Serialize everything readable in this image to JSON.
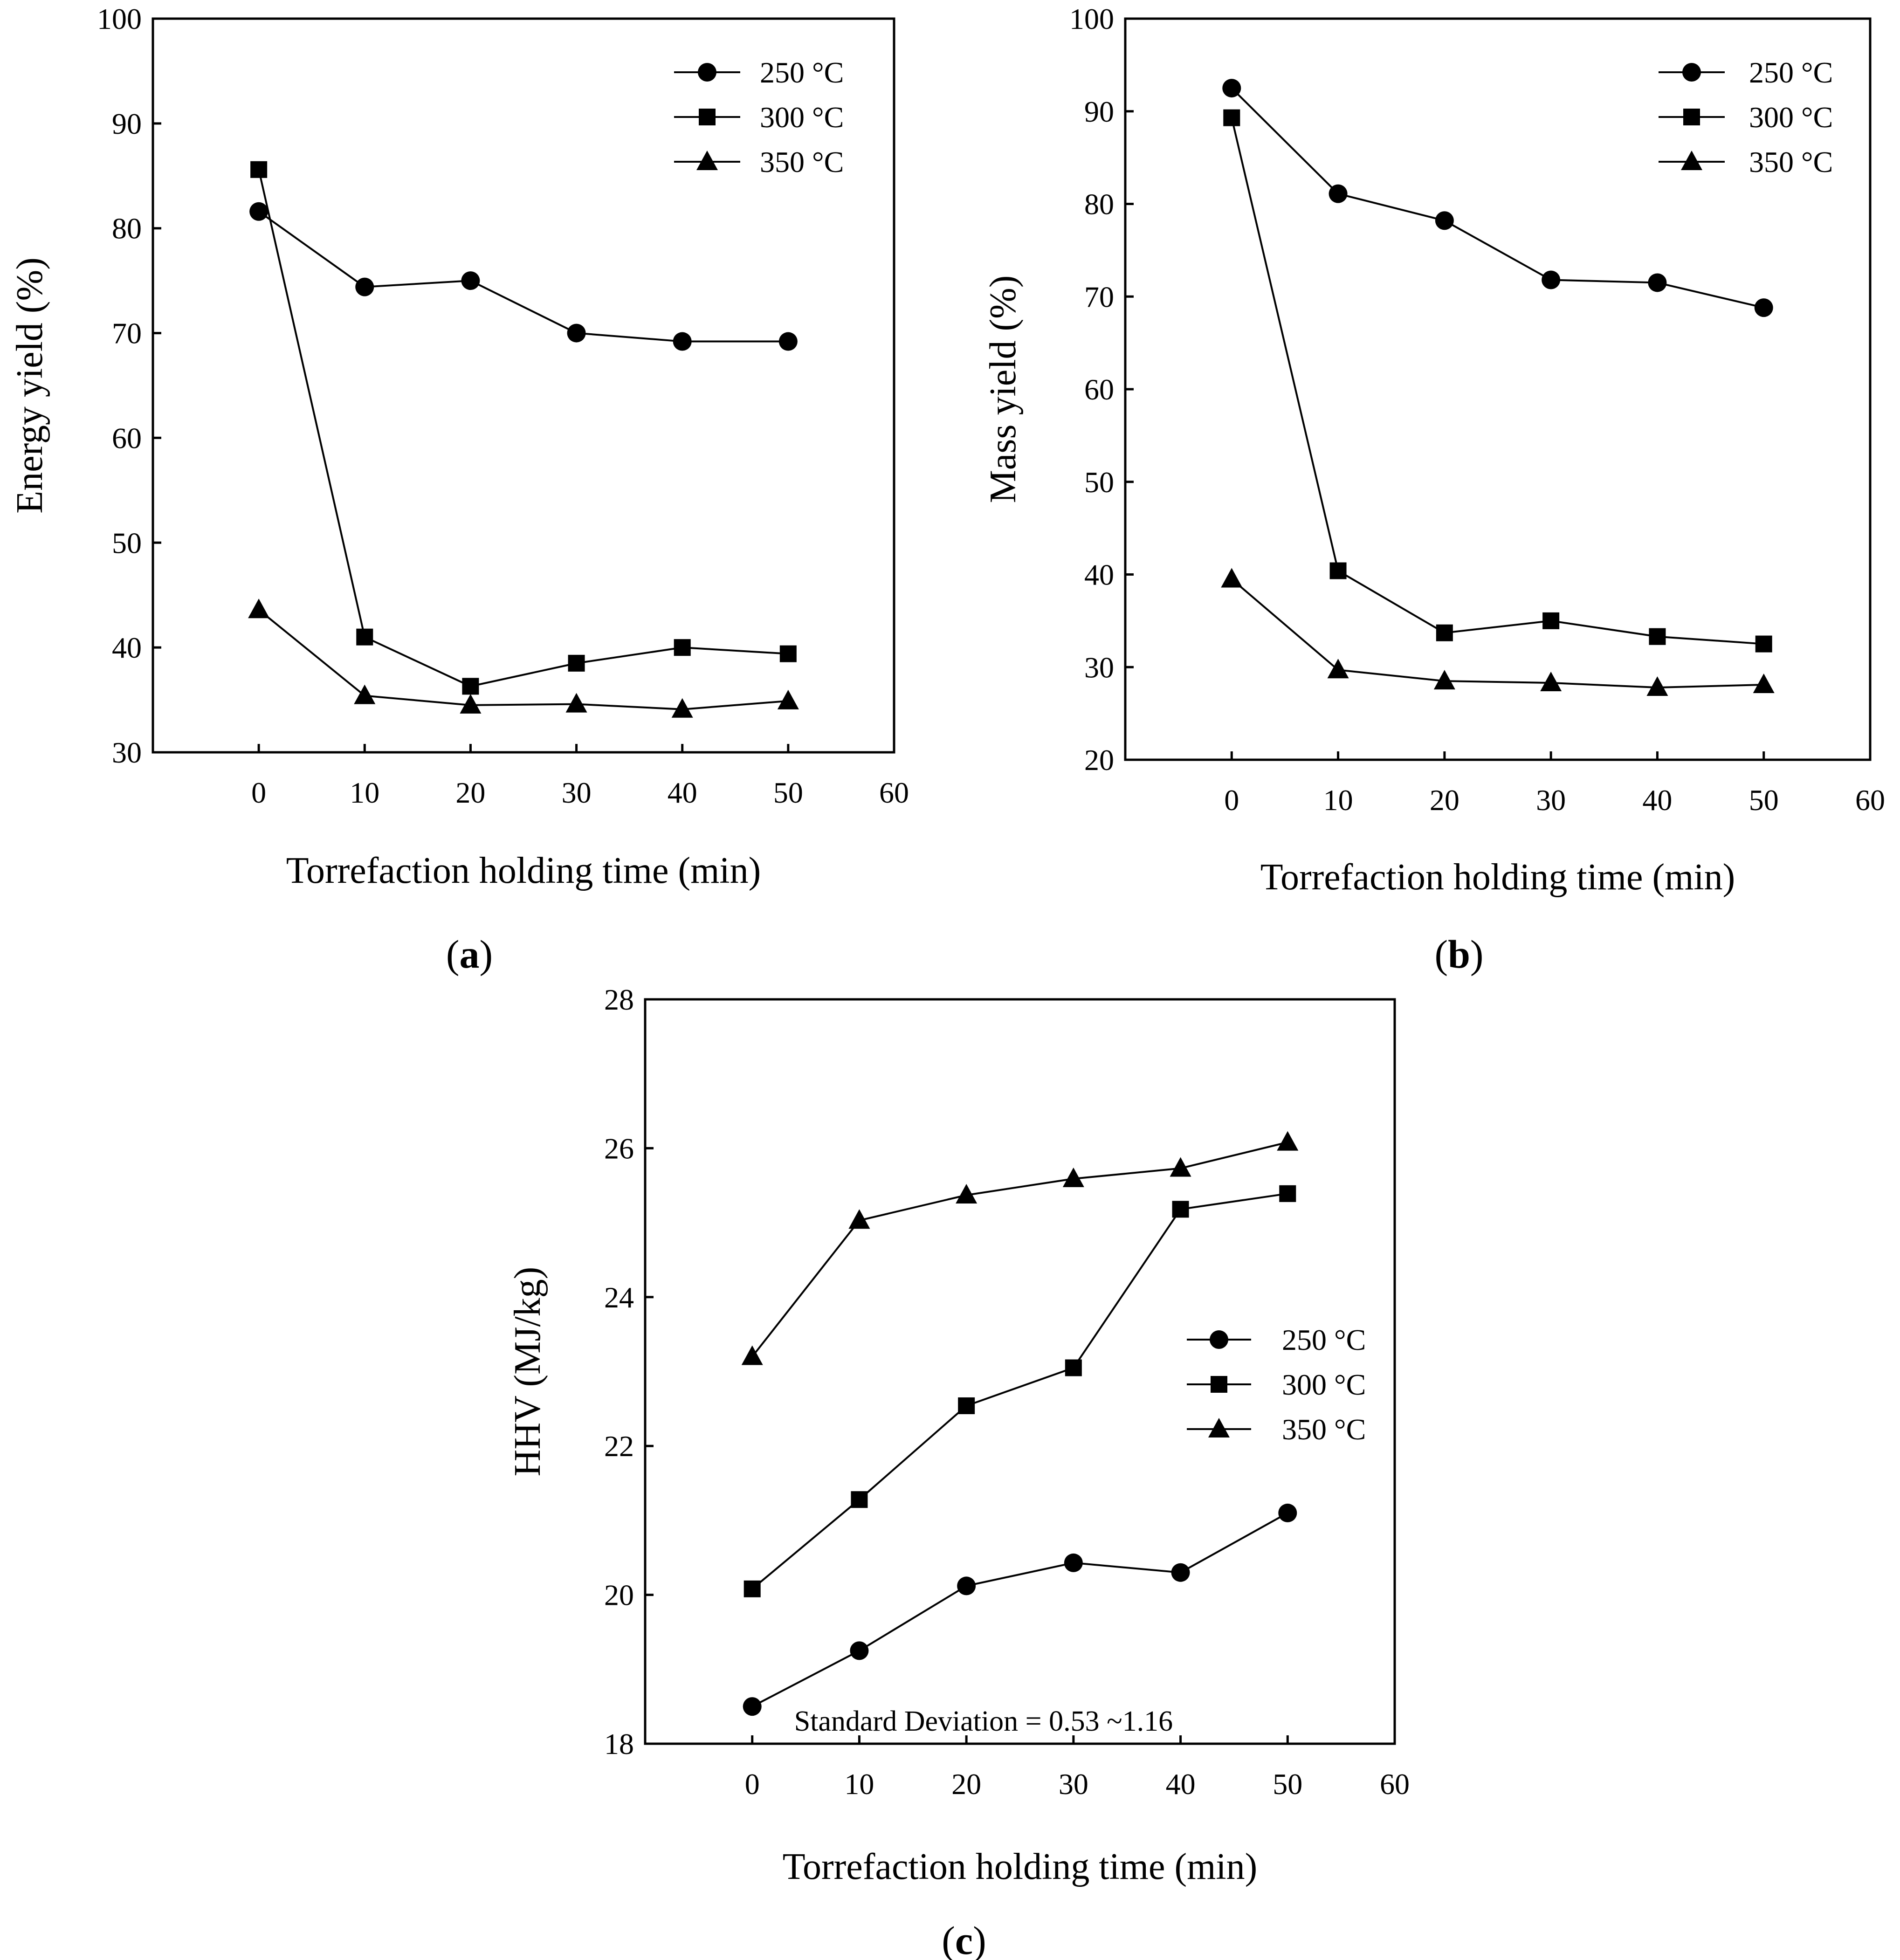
{
  "chart_data": [
    {
      "id": "a",
      "type": "line",
      "panel_label": "a",
      "title": "",
      "xlabel": "Torrefaction holding time (min)",
      "ylabel": "Energy yield (%)",
      "x": [
        0,
        10,
        20,
        30,
        40,
        50
      ],
      "xlim": [
        -10,
        60
      ],
      "xticks": [
        0,
        10,
        20,
        30,
        40,
        50,
        60
      ],
      "ylim": [
        30,
        100
      ],
      "yticks": [
        30,
        40,
        50,
        60,
        70,
        80,
        90,
        100
      ],
      "grid": false,
      "legend_position": "top-right",
      "series": [
        {
          "name": "250 °C",
          "marker": "circle",
          "values": [
            81.6,
            74.4,
            75.0,
            70.0,
            69.2,
            69.2
          ]
        },
        {
          "name": "300 °C",
          "marker": "square",
          "values": [
            85.6,
            41.0,
            36.3,
            38.5,
            40.0,
            39.4
          ]
        },
        {
          "name": "350 °C",
          "marker": "triangle",
          "values": [
            43.6,
            35.4,
            34.5,
            34.6,
            34.1,
            34.9
          ]
        }
      ]
    },
    {
      "id": "b",
      "type": "line",
      "panel_label": "b",
      "title": "",
      "xlabel": "Torrefaction holding time (min)",
      "ylabel": "Mass yield (%)",
      "x": [
        0,
        10,
        20,
        30,
        40,
        50
      ],
      "xlim": [
        -10,
        60
      ],
      "xticks": [
        0,
        10,
        20,
        30,
        40,
        50,
        60
      ],
      "ylim": [
        20,
        100
      ],
      "yticks": [
        20,
        30,
        40,
        50,
        60,
        70,
        80,
        90,
        100
      ],
      "grid": false,
      "legend_position": "top-right",
      "series": [
        {
          "name": "250 °C",
          "marker": "circle",
          "values": [
            92.5,
            81.1,
            78.2,
            71.8,
            71.5,
            68.8
          ]
        },
        {
          "name": "300 °C",
          "marker": "square",
          "values": [
            89.3,
            40.4,
            33.7,
            35.0,
            33.3,
            32.5
          ]
        },
        {
          "name": "350 °C",
          "marker": "triangle",
          "values": [
            39.5,
            29.7,
            28.5,
            28.3,
            27.8,
            28.1
          ]
        }
      ]
    },
    {
      "id": "c",
      "type": "line",
      "panel_label": "c",
      "title": "",
      "xlabel": "Torrefaction holding time (min)",
      "ylabel": "HHV (MJ/kg)",
      "x": [
        0,
        10,
        20,
        30,
        40,
        50
      ],
      "xlim": [
        -10,
        60
      ],
      "xticks": [
        0,
        10,
        20,
        30,
        40,
        50,
        60
      ],
      "ylim": [
        18,
        28
      ],
      "yticks": [
        18,
        20,
        22,
        24,
        26,
        28
      ],
      "grid": false,
      "legend_position": "middle-right",
      "annotation": "Standard Deviation = 0.53 ~1.16",
      "series": [
        {
          "name": "250 °C",
          "marker": "circle",
          "values": [
            18.5,
            19.25,
            20.12,
            20.43,
            20.3,
            21.1
          ]
        },
        {
          "name": "300 °C",
          "marker": "square",
          "values": [
            20.08,
            21.28,
            22.54,
            23.05,
            25.18,
            25.39
          ]
        },
        {
          "name": "350 °C",
          "marker": "triangle",
          "values": [
            23.2,
            25.03,
            25.37,
            25.59,
            25.73,
            26.08
          ]
        }
      ]
    }
  ]
}
